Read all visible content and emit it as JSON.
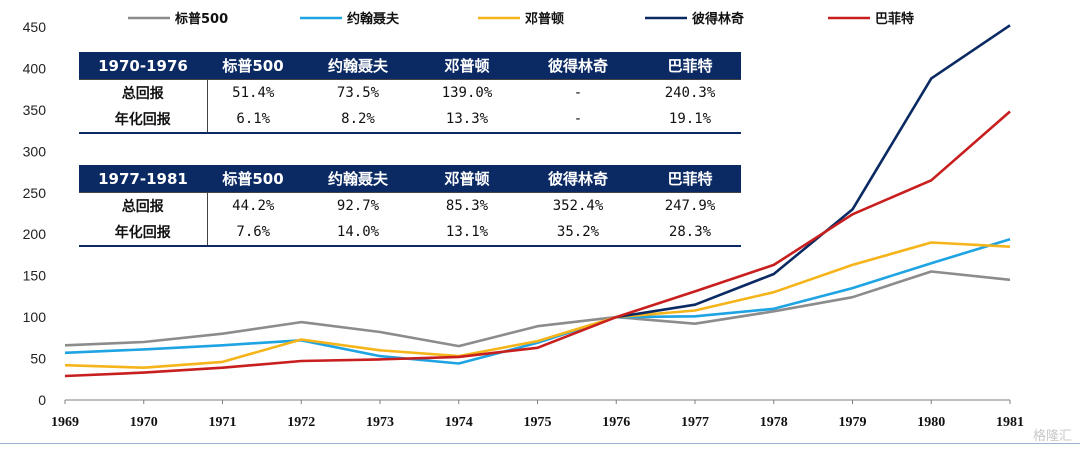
{
  "chart_data": {
    "type": "line",
    "x": [
      "1969",
      "1970",
      "1971",
      "1972",
      "1973",
      "1974",
      "1975",
      "1976",
      "1977",
      "1978",
      "1979",
      "1980",
      "1981"
    ],
    "ylim": [
      0,
      450
    ],
    "yticks": [
      0,
      50,
      100,
      150,
      200,
      250,
      300,
      350,
      400,
      450
    ],
    "legend_position": "top",
    "grid": false,
    "series": [
      {
        "name": "标普500",
        "color": "#8c8c8c",
        "values": [
          66,
          70,
          80,
          94,
          82,
          65,
          89,
          100,
          92,
          107,
          124,
          155,
          145
        ]
      },
      {
        "name": "约翰聂夫",
        "color": "#1ea3e3",
        "values": [
          57,
          61,
          66,
          72,
          53,
          44,
          69,
          100,
          101,
          110,
          135,
          165,
          194
        ]
      },
      {
        "name": "邓普顿",
        "color": "#f5b41a",
        "values": [
          42,
          39,
          46,
          73,
          60,
          53,
          71,
          100,
          108,
          130,
          163,
          190,
          185
        ]
      },
      {
        "name": "彼得林奇",
        "color": "#0b2a63",
        "values": [
          null,
          null,
          null,
          null,
          null,
          null,
          null,
          100,
          115,
          152,
          230,
          388,
          452
        ]
      },
      {
        "name": "巴菲特",
        "color": "#c81e1e",
        "values": [
          29,
          33,
          39,
          47,
          49,
          52,
          63,
          100,
          131,
          163,
          224,
          265,
          348
        ]
      }
    ]
  },
  "table1": {
    "header": [
      "1970-1976",
      "标普500",
      "约翰聂夫",
      "邓普顿",
      "彼得林奇",
      "巴菲特"
    ],
    "rows": [
      [
        "总回报",
        "51.4%",
        "73.5%",
        "139.0%",
        "-",
        "240.3%"
      ],
      [
        "年化回报",
        "6.1%",
        "8.2%",
        "13.3%",
        "-",
        "19.1%"
      ]
    ]
  },
  "table2": {
    "header": [
      "1977-1981",
      "标普500",
      "约翰聂夫",
      "邓普顿",
      "彼得林奇",
      "巴菲特"
    ],
    "rows": [
      [
        "总回报",
        "44.2%",
        "92.7%",
        "85.3%",
        "352.4%",
        "247.9%"
      ],
      [
        "年化回报",
        "7.6%",
        "14.0%",
        "13.1%",
        "35.2%",
        "28.3%"
      ]
    ]
  },
  "watermark": "格隆汇"
}
